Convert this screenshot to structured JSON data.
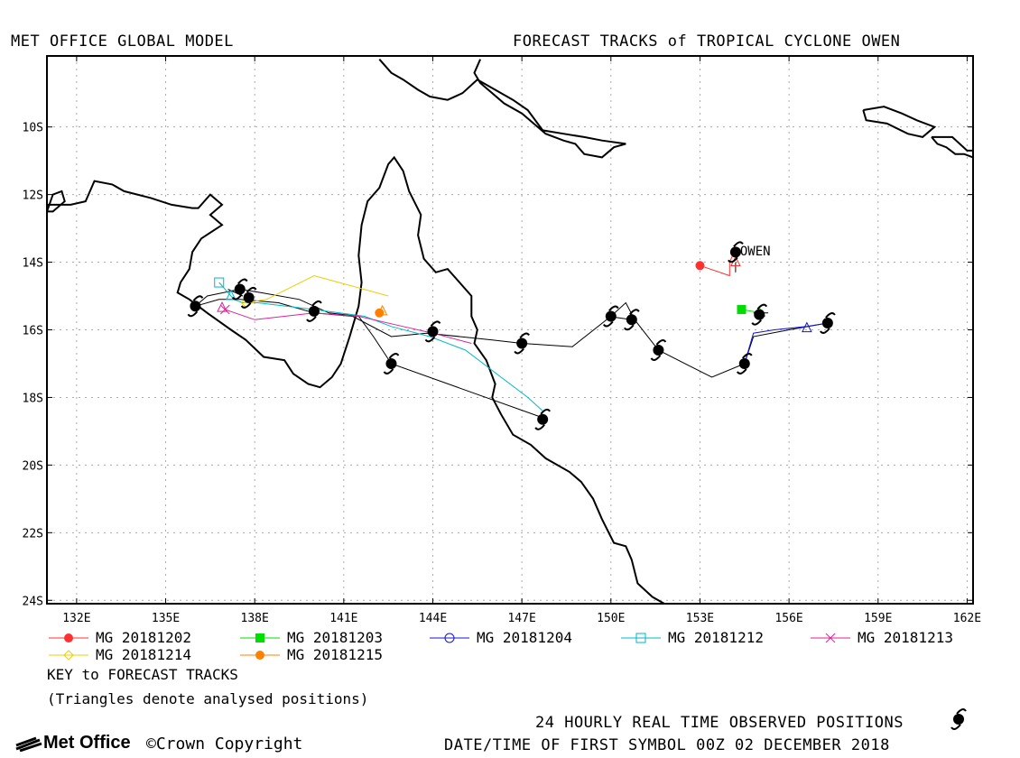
{
  "header": {
    "left_title": "MET OFFICE GLOBAL MODEL",
    "right_title": "FORECAST TRACKS of TROPICAL CYCLONE OWEN"
  },
  "map": {
    "lon_range": [
      131,
      162.2
    ],
    "lat_range": [
      -24.1,
      -7.9
    ],
    "lat_ticks": [
      {
        "value": -10,
        "label": "10S"
      },
      {
        "value": -12,
        "label": "12S"
      },
      {
        "value": -14,
        "label": "14S"
      },
      {
        "value": -16,
        "label": "16S"
      },
      {
        "value": -18,
        "label": "18S"
      },
      {
        "value": -20,
        "label": "20S"
      },
      {
        "value": -22,
        "label": "22S"
      },
      {
        "value": -24,
        "label": "24S"
      }
    ],
    "lon_ticks": [
      {
        "value": 132,
        "label": "132E"
      },
      {
        "value": 135,
        "label": "135E"
      },
      {
        "value": 138,
        "label": "138E"
      },
      {
        "value": 141,
        "label": "141E"
      },
      {
        "value": 144,
        "label": "144E"
      },
      {
        "value": 147,
        "label": "147E"
      },
      {
        "value": 150,
        "label": "150E"
      },
      {
        "value": 153,
        "label": "153E"
      },
      {
        "value": 156,
        "label": "156E"
      },
      {
        "value": 159,
        "label": "159E"
      },
      {
        "value": 162,
        "label": "162E"
      }
    ],
    "storm_label": "OWEN",
    "storm_label_pos": [
      154.35,
      -13.8
    ],
    "coastlines": [
      [
        [
          131.0,
          -12.5
        ],
        [
          131.2,
          -12.0
        ],
        [
          131.5,
          -11.9
        ],
        [
          131.6,
          -12.2
        ],
        [
          131.2,
          -12.5
        ],
        [
          131.0,
          -12.5
        ]
      ],
      [
        [
          131.0,
          -12.3
        ],
        [
          131.8,
          -12.3
        ],
        [
          132.3,
          -12.2
        ],
        [
          132.6,
          -11.6
        ],
        [
          133.2,
          -11.7
        ],
        [
          133.6,
          -11.9
        ],
        [
          134.5,
          -12.1
        ],
        [
          135.2,
          -12.3
        ],
        [
          135.9,
          -12.4
        ],
        [
          136.1,
          -12.4
        ],
        [
          136.5,
          -12.0
        ],
        [
          136.9,
          -12.3
        ],
        [
          136.5,
          -12.6
        ],
        [
          136.9,
          -12.9
        ],
        [
          136.2,
          -13.3
        ],
        [
          135.9,
          -13.7
        ],
        [
          135.8,
          -14.2
        ],
        [
          135.5,
          -14.6
        ],
        [
          135.4,
          -14.9
        ],
        [
          135.8,
          -15.1
        ],
        [
          136.4,
          -15.5
        ],
        [
          137.2,
          -16.0
        ],
        [
          137.7,
          -16.3
        ],
        [
          138.3,
          -16.8
        ],
        [
          139.0,
          -16.9
        ],
        [
          139.3,
          -17.3
        ],
        [
          139.8,
          -17.6
        ],
        [
          140.2,
          -17.7
        ],
        [
          140.6,
          -17.4
        ],
        [
          140.9,
          -17.0
        ],
        [
          141.2,
          -16.2
        ],
        [
          141.5,
          -15.3
        ],
        [
          141.6,
          -14.6
        ],
        [
          141.5,
          -13.8
        ],
        [
          141.6,
          -12.9
        ],
        [
          141.8,
          -12.2
        ],
        [
          142.2,
          -11.8
        ],
        [
          142.5,
          -11.1
        ],
        [
          142.7,
          -10.9
        ],
        [
          143.0,
          -11.3
        ],
        [
          143.2,
          -11.9
        ],
        [
          143.6,
          -12.6
        ],
        [
          143.5,
          -13.2
        ],
        [
          143.7,
          -13.9
        ],
        [
          144.1,
          -14.3
        ],
        [
          144.5,
          -14.2
        ],
        [
          144.9,
          -14.6
        ],
        [
          145.3,
          -15.0
        ],
        [
          145.3,
          -15.6
        ],
        [
          145.5,
          -16.0
        ],
        [
          145.4,
          -16.4
        ],
        [
          145.8,
          -16.9
        ],
        [
          146.1,
          -17.6
        ],
        [
          146.0,
          -18.0
        ],
        [
          146.3,
          -18.5
        ],
        [
          146.7,
          -19.1
        ],
        [
          147.3,
          -19.4
        ],
        [
          147.8,
          -19.8
        ],
        [
          148.6,
          -20.2
        ],
        [
          149.0,
          -20.5
        ],
        [
          149.4,
          -21.0
        ],
        [
          149.7,
          -21.6
        ],
        [
          150.1,
          -22.3
        ],
        [
          150.5,
          -22.4
        ],
        [
          150.7,
          -22.8
        ],
        [
          150.9,
          -23.5
        ],
        [
          151.4,
          -23.9
        ],
        [
          151.8,
          -24.1
        ],
        [
          152.2,
          -24.2
        ]
      ],
      [
        [
          142.2,
          -8.0
        ],
        [
          142.6,
          -8.4
        ],
        [
          143.0,
          -8.6
        ],
        [
          143.5,
          -8.9
        ],
        [
          143.9,
          -9.1
        ],
        [
          144.5,
          -9.2
        ],
        [
          145.0,
          -9.0
        ],
        [
          145.5,
          -8.6
        ],
        [
          146.1,
          -8.9
        ],
        [
          146.7,
          -9.2
        ],
        [
          147.2,
          -9.5
        ],
        [
          147.7,
          -10.1
        ],
        [
          148.4,
          -10.2
        ],
        [
          149.1,
          -10.3
        ],
        [
          149.7,
          -10.4
        ],
        [
          150.5,
          -10.5
        ],
        [
          150.1,
          -10.6
        ],
        [
          149.7,
          -10.9
        ],
        [
          149.1,
          -10.8
        ],
        [
          148.8,
          -10.5
        ],
        [
          148.4,
          -10.4
        ],
        [
          147.8,
          -10.2
        ],
        [
          147.0,
          -9.6
        ],
        [
          146.4,
          -9.3
        ],
        [
          146.0,
          -9.0
        ],
        [
          145.6,
          -8.7
        ],
        [
          145.4,
          -8.4
        ],
        [
          145.6,
          -8.0
        ]
      ],
      [
        [
          158.5,
          -9.5
        ],
        [
          159.2,
          -9.4
        ],
        [
          159.8,
          -9.6
        ],
        [
          160.3,
          -9.8
        ],
        [
          160.9,
          -10.0
        ],
        [
          160.5,
          -10.3
        ],
        [
          160.0,
          -10.2
        ],
        [
          159.3,
          -9.9
        ],
        [
          158.6,
          -9.8
        ],
        [
          158.5,
          -9.5
        ]
      ],
      [
        [
          160.8,
          -10.3
        ],
        [
          161.5,
          -10.3
        ],
        [
          162.0,
          -10.7
        ],
        [
          162.2,
          -10.7
        ],
        [
          162.2,
          -10.9
        ],
        [
          161.9,
          -10.8
        ],
        [
          161.6,
          -10.8
        ],
        [
          161.3,
          -10.6
        ],
        [
          161.0,
          -10.5
        ],
        [
          160.8,
          -10.3
        ]
      ]
    ],
    "observed_track": [
      [
        154.1,
        -13.7
      ],
      [
        154.2,
        -14.0
      ],
      [
        154.3,
        -14.2
      ],
      [
        154.3,
        -15.0
      ],
      [
        154.8,
        -15.5
      ],
      [
        155.0,
        -15.9
      ],
      [
        155.4,
        -16.0
      ],
      [
        155.8,
        -16.0
      ],
      [
        156.6,
        -15.9
      ],
      [
        157.2,
        -15.8
      ]
    ],
    "tracks": [
      {
        "name": "MG 20181202",
        "color": "#ff3030",
        "marker": "circle-filled",
        "points": [
          [
            153.0,
            -14.1
          ],
          [
            154.0,
            -14.4
          ],
          [
            154.0,
            -14.0
          ],
          [
            154.1,
            -13.8
          ]
        ]
      },
      {
        "name": "MG 20181203",
        "color": "#00dd00",
        "marker": "square-filled",
        "points": [
          [
            154.4,
            -15.4
          ],
          [
            155.1,
            -15.5
          ],
          [
            155.2,
            -15.6
          ],
          [
            154.9,
            -15.5
          ]
        ]
      },
      {
        "name": "MG 20181204",
        "color": "#1515d0",
        "marker": "circle-open",
        "points": [
          [
            154.5,
            -17.0
          ],
          [
            154.8,
            -16.1
          ],
          [
            155.5,
            -16.0
          ],
          [
            156.6,
            -15.9
          ],
          [
            157.3,
            -15.8
          ]
        ]
      },
      {
        "name": "MG 20181212",
        "color": "#00b8c8",
        "marker": "square-open",
        "points": [
          [
            136.8,
            -14.6
          ],
          [
            137.3,
            -15.1
          ],
          [
            137.6,
            -15.2
          ],
          [
            138.1,
            -15.2
          ],
          [
            140.0,
            -15.4
          ],
          [
            141.7,
            -15.6
          ],
          [
            142.6,
            -15.9
          ],
          [
            143.9,
            -16.2
          ],
          [
            145.1,
            -16.6
          ],
          [
            146.3,
            -17.4
          ],
          [
            147.2,
            -18.0
          ],
          [
            147.7,
            -18.4
          ]
        ]
      },
      {
        "name": "MG 20181213",
        "color": "#dd2299",
        "marker": "x",
        "points": [
          [
            137.0,
            -15.4
          ],
          [
            138.0,
            -15.7
          ],
          [
            140.0,
            -15.5
          ],
          [
            141.5,
            -15.6
          ],
          [
            143.0,
            -15.9
          ],
          [
            144.0,
            -16.1
          ],
          [
            145.3,
            -16.4
          ]
        ]
      },
      {
        "name": "MG 20181214",
        "color": "#e8d000",
        "marker": "diamond-open",
        "points": [
          [
            137.7,
            -15.2
          ],
          [
            138.4,
            -15.1
          ],
          [
            140.0,
            -14.4
          ],
          [
            142.5,
            -15.0
          ]
        ]
      },
      {
        "name": "MG 20181215",
        "color": "#ff8000",
        "marker": "circle-filled",
        "points": [
          [
            142.2,
            -15.5
          ]
        ]
      }
    ],
    "analysed_positions": [
      {
        "lon": 154.2,
        "lat": -14.0,
        "color": "#ff3030"
      },
      {
        "lon": 155.0,
        "lat": -15.5,
        "color": "#00dd00"
      },
      {
        "lon": 156.6,
        "lat": -15.95,
        "color": "#1515d0"
      },
      {
        "lon": 137.2,
        "lat": -15.0,
        "color": "#00b8c8"
      },
      {
        "lon": 136.9,
        "lat": -15.35,
        "color": "#dd2299"
      },
      {
        "lon": 137.8,
        "lat": -15.1,
        "color": "#e8d000"
      },
      {
        "lon": 142.3,
        "lat": -15.45,
        "color": "#ff8000"
      }
    ],
    "black_tracks": [
      [
        [
          136.0,
          -15.3
        ],
        [
          136.8,
          -15.1
        ],
        [
          137.5,
          -15.1
        ],
        [
          138.8,
          -15.2
        ],
        [
          140.0,
          -15.5
        ],
        [
          141.3,
          -15.6
        ],
        [
          142.6,
          -16.2
        ],
        [
          143.8,
          -16.1
        ],
        [
          146.0,
          -16.3
        ],
        [
          147.0,
          -16.4
        ],
        [
          148.7,
          -16.5
        ],
        [
          150.0,
          -15.6
        ],
        [
          150.5,
          -15.2
        ],
        [
          150.8,
          -15.7
        ],
        [
          151.6,
          -16.6
        ],
        [
          153.4,
          -17.4
        ],
        [
          154.5,
          -17.0
        ],
        [
          154.8,
          -16.2
        ],
        [
          156.0,
          -16.0
        ],
        [
          157.3,
          -15.8
        ]
      ],
      [
        [
          136.0,
          -15.3
        ],
        [
          136.4,
          -15.0
        ],
        [
          137.5,
          -14.8
        ],
        [
          138.2,
          -14.9
        ],
        [
          139.5,
          -15.1
        ],
        [
          140.5,
          -15.5
        ],
        [
          141.5,
          -15.6
        ],
        [
          142.0,
          -16.2
        ],
        [
          142.6,
          -17.0
        ],
        [
          147.7,
          -18.6
        ]
      ],
      [
        [
          137.1,
          -14.8
        ],
        [
          137.6,
          -15.0
        ]
      ],
      [
        [
          149.9,
          -15.6
        ],
        [
          150.7,
          -15.7
        ]
      ],
      [
        [
          154.2,
          -14.0
        ],
        [
          154.2,
          -14.3
        ]
      ],
      [
        [
          154.8,
          -15.5
        ],
        [
          155.3,
          -15.5
        ]
      ]
    ],
    "observed_symbols": [
      [
        136.0,
        -15.3
      ],
      [
        137.5,
        -14.8
      ],
      [
        137.8,
        -15.05
      ],
      [
        140.0,
        -15.45
      ],
      [
        142.6,
        -17.0
      ],
      [
        144.0,
        -16.05
      ],
      [
        147.0,
        -16.4
      ],
      [
        147.7,
        -18.65
      ],
      [
        150.0,
        -15.6
      ],
      [
        150.7,
        -15.7
      ],
      [
        151.6,
        -16.6
      ],
      [
        154.5,
        -17.0
      ],
      [
        154.2,
        -13.7
      ],
      [
        155.0,
        -15.55
      ],
      [
        157.3,
        -15.8
      ]
    ]
  },
  "legend": {
    "items": [
      {
        "label": "MG 20181202",
        "color": "#ff3030",
        "marker": "circle-filled"
      },
      {
        "label": "MG 20181203",
        "color": "#00dd00",
        "marker": "square-filled"
      },
      {
        "label": "MG 20181204",
        "color": "#1515d0",
        "marker": "circle-open"
      },
      {
        "label": "MG 20181212",
        "color": "#00b8c8",
        "marker": "square-open"
      },
      {
        "label": "MG 20181213",
        "color": "#dd2299",
        "marker": "x"
      },
      {
        "label": "MG 20181214",
        "color": "#e8d000",
        "marker": "diamond-open"
      },
      {
        "label": "MG 20181215",
        "color": "#ff8000",
        "marker": "circle-filled"
      }
    ],
    "key_title": "KEY to FORECAST TRACKS",
    "key_note": "(Triangles denote analysed positions)"
  },
  "footer": {
    "observed_label": "24 HOURLY REAL TIME OBSERVED POSITIONS",
    "datetime_label": "DATE/TIME OF FIRST SYMBOL 00Z 02 DECEMBER 2018",
    "logo_text": "Met Office",
    "copyright": "Crown Copyright"
  }
}
